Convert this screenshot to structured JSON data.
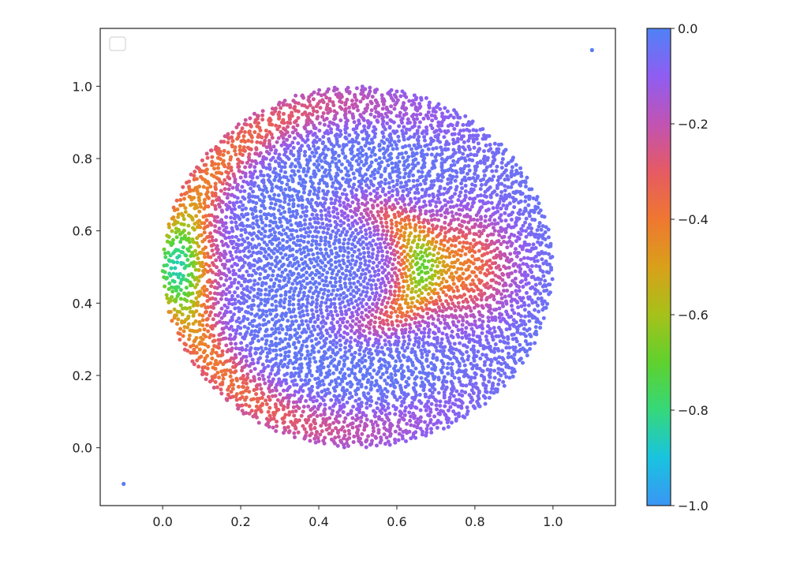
{
  "chart_data": {
    "type": "scatter",
    "title": "",
    "xlabel": "",
    "ylabel": "",
    "xlim": [
      -0.16,
      1.16
    ],
    "ylim": [
      -0.16,
      1.16
    ],
    "xticks": [
      0.0,
      0.2,
      0.4,
      0.6,
      0.8,
      1.0
    ],
    "yticks": [
      0.0,
      0.2,
      0.4,
      0.6,
      0.8,
      1.0
    ],
    "xtick_labels": [
      "0.0",
      "0.2",
      "0.4",
      "0.6",
      "0.8",
      "1.0"
    ],
    "ytick_labels": [
      "0.0",
      "0.2",
      "0.4",
      "0.6",
      "0.8",
      "1.0"
    ],
    "grid": false,
    "legend": {
      "placement": "upper-left",
      "entries": []
    },
    "disk": {
      "center": [
        0.5,
        0.5
      ],
      "radius": 0.5,
      "point_count": 6000
    },
    "outlier_points": [
      {
        "x": -0.1,
        "y": -0.1,
        "value": -0.02
      },
      {
        "x": 1.1,
        "y": 1.1,
        "value": -0.02
      }
    ],
    "colorbar": {
      "min": -1.0,
      "max": 0.0,
      "ticks": [
        0.0,
        -0.2,
        -0.4,
        -0.6,
        -0.8,
        -1.0
      ],
      "tick_labels": [
        "0.0",
        "−0.2",
        "−0.4",
        "−0.6",
        "−0.8",
        "−1.0"
      ],
      "colormap": [
        {
          "value": -1.0,
          "color": "#3a96f4"
        },
        {
          "value": -0.9,
          "color": "#19c3e0"
        },
        {
          "value": -0.8,
          "color": "#35d87a"
        },
        {
          "value": -0.7,
          "color": "#5fd12e"
        },
        {
          "value": -0.6,
          "color": "#a6c11a"
        },
        {
          "value": -0.5,
          "color": "#d9a01a"
        },
        {
          "value": -0.4,
          "color": "#ef7730"
        },
        {
          "value": -0.3,
          "color": "#e65a63"
        },
        {
          "value": -0.2,
          "color": "#c153b3"
        },
        {
          "value": -0.1,
          "color": "#8f5df2"
        },
        {
          "value": 0.0,
          "color": "#4f82f7"
        }
      ]
    }
  }
}
